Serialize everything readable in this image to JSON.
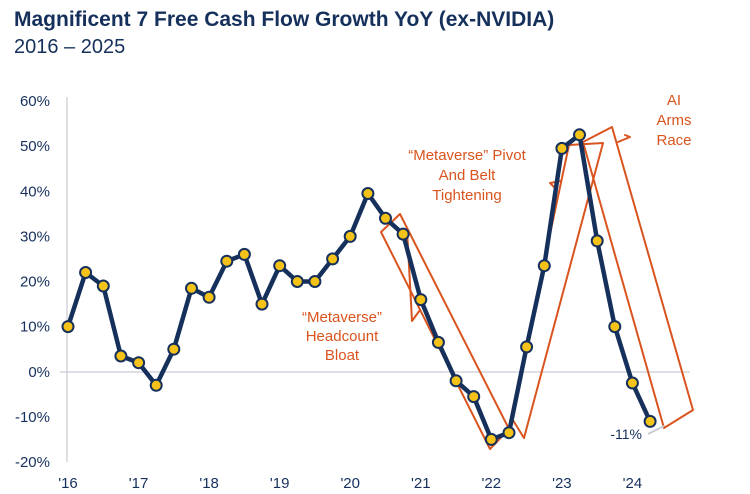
{
  "chart_data": {
    "type": "line",
    "title": "Magnificent 7 Free Cash Flow Growth YoY (ex-NVIDIA)",
    "subtitle": "2016 – 2025",
    "ylim": [
      -20,
      60
    ],
    "yticks": [
      "60%",
      "50%",
      "40%",
      "30%",
      "20%",
      "10%",
      "0%",
      "-10%",
      "-20%"
    ],
    "ytick_values": [
      60,
      50,
      40,
      30,
      20,
      10,
      0,
      -10,
      -20
    ],
    "xticks": [
      "'16",
      "'17",
      "'18",
      "'19",
      "'20",
      "'21",
      "'22",
      "'23",
      "'24"
    ],
    "xtick_values": [
      2016.0,
      2017.0,
      2018.0,
      2019.0,
      2020.0,
      2021.0,
      2022.0,
      2023.0,
      2024.0
    ],
    "xlim": [
      2016.0,
      2025.0
    ],
    "grid": false,
    "line_color": "#16305c",
    "marker_color": "#f5c318",
    "annotation_color": "#d9541e",
    "series": [
      {
        "x": [
          2016.0,
          2016.25,
          2016.5,
          2016.75,
          2017.0,
          2017.25,
          2017.5,
          2017.75,
          2018.0,
          2018.25,
          2018.5,
          2018.75,
          2019.0,
          2019.25,
          2019.5,
          2019.75,
          2020.0,
          2020.25,
          2020.5,
          2020.75,
          2021.0,
          2021.25,
          2021.5,
          2021.75,
          2022.0,
          2022.25,
          2022.5,
          2022.75,
          2023.0,
          2023.25,
          2023.5,
          2023.75,
          2024.0,
          2024.25
        ],
        "values": [
          10,
          22,
          19,
          3.5,
          2,
          -3,
          5,
          18.5,
          16.5,
          24.5,
          26,
          15,
          23.5,
          20,
          20,
          25,
          30,
          39.5,
          34,
          30.5,
          16,
          6.5,
          -2,
          -5.5,
          -15,
          -13.5,
          5.5,
          23.5,
          49.5,
          52.5,
          29,
          10,
          -2.5,
          -11
        ]
      }
    ],
    "annotations": {
      "bloat": [
        "“Metaverse”",
        "Headcount",
        "Bloat"
      ],
      "pivot": [
        "“Metaverse” Pivot",
        "And Belt",
        "Tightening"
      ],
      "arms": [
        "AI",
        "Arms",
        "Race"
      ],
      "end_label": "-11%"
    }
  }
}
